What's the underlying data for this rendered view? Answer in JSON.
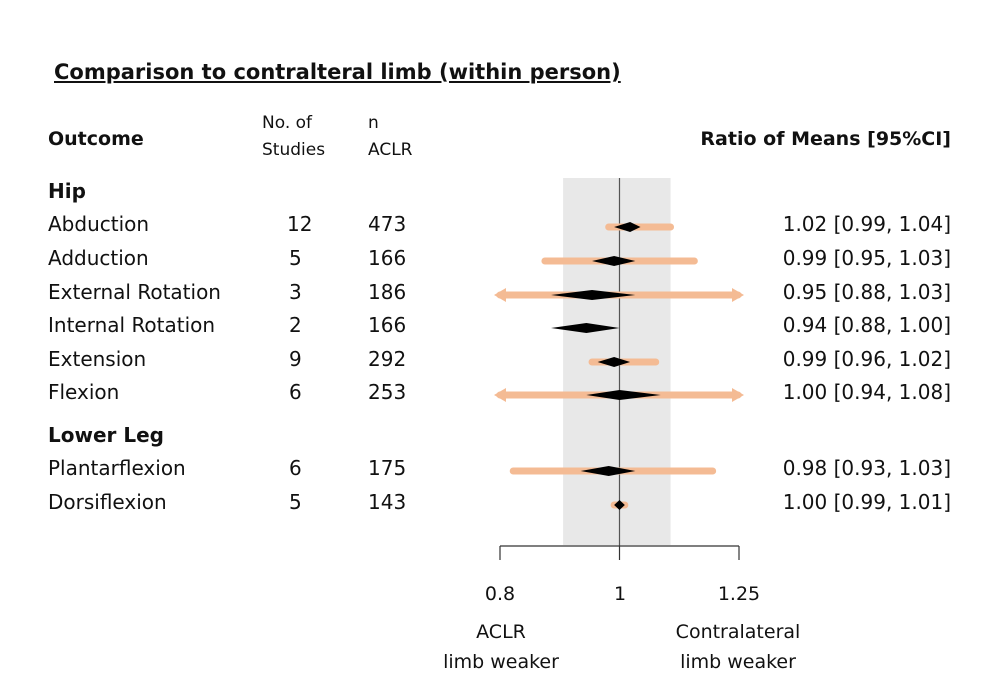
{
  "title": "Comparison to contralteral limb (within person)",
  "headers": {
    "outcome": "Outcome",
    "studies_line1": "No. of",
    "studies_line2": "Studies",
    "n_line1": "n",
    "n_line2": "ACLR",
    "ratio": "Ratio of Means [95%CI]"
  },
  "groups": {
    "hip": "Hip",
    "lower_leg": "Lower Leg"
  },
  "rows": [
    {
      "label": "Abduction",
      "studies": "12",
      "n": "473",
      "ci_text": "1.02 [0.99, 1.04]"
    },
    {
      "label": "Adduction",
      "studies": "5",
      "n": "166",
      "ci_text": "0.99 [0.95, 1.03]"
    },
    {
      "label": "External Rotation",
      "studies": "3",
      "n": "186",
      "ci_text": "0.95 [0.88, 1.03]"
    },
    {
      "label": "Internal Rotation",
      "studies": "2",
      "n": "166",
      "ci_text": "0.94 [0.88, 1.00]"
    },
    {
      "label": "Extension",
      "studies": "9",
      "n": "292",
      "ci_text": "0.99 [0.96, 1.02]"
    },
    {
      "label": "Flexion",
      "studies": "6",
      "n": "253",
      "ci_text": "1.00 [0.94, 1.08]"
    },
    {
      "label": "Plantarflexion",
      "studies": "6",
      "n": "175",
      "ci_text": "0.98 [0.93, 1.03]"
    },
    {
      "label": "Dorsiflexion",
      "studies": "5",
      "n": "143",
      "ci_text": "1.00 [0.99, 1.01]"
    }
  ],
  "axis": {
    "tick_labels": [
      "0.8",
      "1",
      "1.25"
    ],
    "left_direction_line1": "ACLR",
    "left_direction_line2": "limb weaker",
    "right_direction_line1": "Contralateral",
    "right_direction_line2": "limb weaker"
  },
  "colors": {
    "prediction_interval": "#f4bb94",
    "estimate": "#000000",
    "band": "#e8e8e8",
    "reference_line": "#555555"
  },
  "chart_data": {
    "type": "forest",
    "xscale": "log",
    "xlim": [
      0.8,
      1.25
    ],
    "xticks": [
      0.8,
      1,
      1.25
    ],
    "reference": 1,
    "shaded_band": [
      0.9,
      1.1
    ],
    "series": [
      {
        "label": "Abduction",
        "estimate": 1.02,
        "ci": [
          0.99,
          1.04
        ],
        "pi": [
          0.98,
          1.1
        ],
        "pi_arrow_left": false,
        "pi_arrow_right": false
      },
      {
        "label": "Adduction",
        "estimate": 0.99,
        "ci": [
          0.95,
          1.03
        ],
        "pi": [
          0.87,
          1.15
        ],
        "pi_arrow_left": false,
        "pi_arrow_right": false
      },
      {
        "label": "External Rotation",
        "estimate": 0.95,
        "ci": [
          0.88,
          1.03
        ],
        "pi": [
          0.8,
          1.25
        ],
        "pi_arrow_left": true,
        "pi_arrow_right": true
      },
      {
        "label": "Internal Rotation",
        "estimate": 0.94,
        "ci": [
          0.88,
          1.0
        ],
        "pi": null,
        "pi_arrow_left": false,
        "pi_arrow_right": false
      },
      {
        "label": "Extension",
        "estimate": 0.99,
        "ci": [
          0.96,
          1.02
        ],
        "pi": [
          0.95,
          1.07
        ],
        "pi_arrow_left": false,
        "pi_arrow_right": false
      },
      {
        "label": "Flexion",
        "estimate": 1.0,
        "ci": [
          0.94,
          1.08
        ],
        "pi": [
          0.8,
          1.25
        ],
        "pi_arrow_left": true,
        "pi_arrow_right": true
      },
      {
        "label": "Plantarflexion",
        "estimate": 0.98,
        "ci": [
          0.93,
          1.03
        ],
        "pi": [
          0.82,
          1.19
        ],
        "pi_arrow_left": false,
        "pi_arrow_right": false
      },
      {
        "label": "Dorsiflexion",
        "estimate": 1.0,
        "ci": [
          0.99,
          1.01
        ],
        "pi": [
          0.99,
          1.01
        ],
        "pi_arrow_left": false,
        "pi_arrow_right": false
      }
    ]
  }
}
